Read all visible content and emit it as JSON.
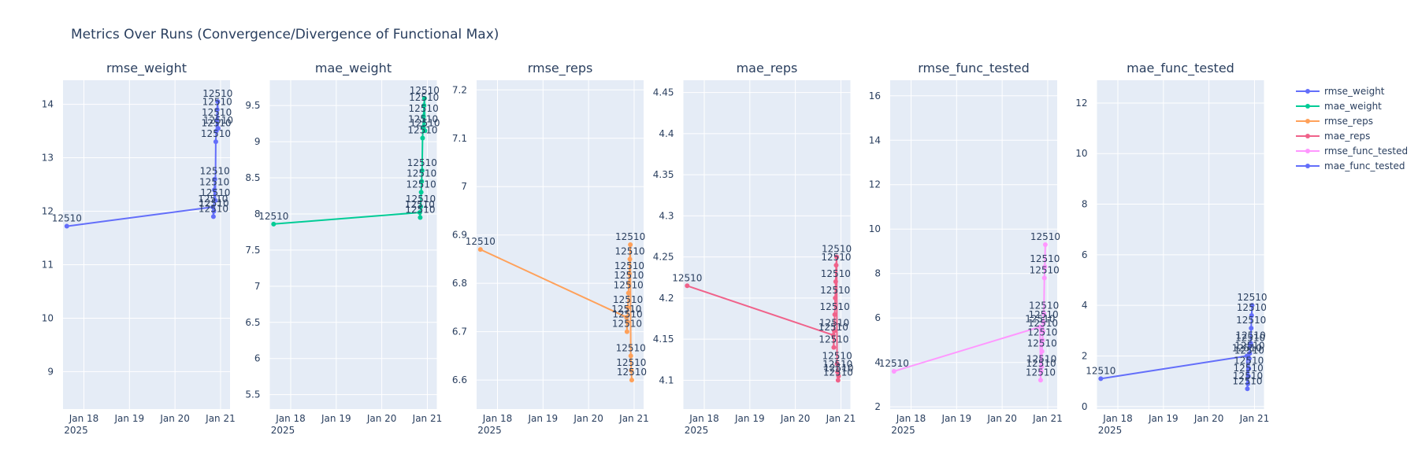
{
  "chart_data": {
    "type": "line",
    "title": "Metrics Over Runs (Convergence/Divergence of Functional Max)",
    "x_ticks": [
      "Jan 18",
      "Jan 19",
      "Jan 20",
      "Jan 21"
    ],
    "x_year_label": "2025",
    "x_range": [
      "2025-01-17 13:00",
      "2025-01-21 05:00"
    ],
    "point_label": "12510",
    "legend_position": "top-right",
    "grid": true,
    "colors": {
      "plot_bg": "#E5ECF6",
      "grid": "#ffffff",
      "text": "#2a3f5f"
    },
    "panels": [
      {
        "name": "rmse_weight",
        "color": "#636EFA",
        "ylim": [
          8.3,
          14.45
        ],
        "y_ticks": [
          9,
          10,
          11,
          12,
          13,
          14
        ],
        "x": [
          "2025-01-17 15:00",
          "2025-01-20 20:00",
          "2025-01-20 20:15",
          "2025-01-20 20:30",
          "2025-01-20 20:45",
          "2025-01-20 21:00",
          "2025-01-20 21:15",
          "2025-01-20 21:30",
          "2025-01-20 21:45",
          "2025-01-20 22:00",
          "2025-01-20 22:15",
          "2025-01-20 22:30",
          "2025-01-20 22:45"
        ],
        "values": [
          11.72,
          12.08,
          11.9,
          12.0,
          12.4,
          12.6,
          12.2,
          13.3,
          13.5,
          13.7,
          13.9,
          14.05,
          13.55
        ]
      },
      {
        "name": "mae_weight",
        "color": "#00CC96",
        "ylim": [
          5.3,
          9.85
        ],
        "y_ticks": [
          5.5,
          6,
          6.5,
          7,
          7.5,
          8,
          8.5,
          9,
          9.5
        ],
        "x": [
          "2025-01-17 15:00",
          "2025-01-20 20:00",
          "2025-01-20 20:15",
          "2025-01-20 20:30",
          "2025-01-20 20:45",
          "2025-01-20 21:00",
          "2025-01-20 21:15",
          "2025-01-20 21:30",
          "2025-01-20 21:45",
          "2025-01-20 22:00",
          "2025-01-20 22:15",
          "2025-01-20 22:30",
          "2025-01-20 22:45"
        ],
        "values": [
          7.86,
          8.02,
          7.95,
          8.1,
          8.3,
          8.45,
          8.6,
          9.05,
          9.2,
          9.35,
          9.5,
          9.6,
          9.15
        ]
      },
      {
        "name": "rmse_reps",
        "color": "#FFA15A",
        "ylim": [
          6.54,
          7.22
        ],
        "y_ticks": [
          6.6,
          6.7,
          6.8,
          6.9,
          7,
          7.1,
          7.2
        ],
        "x": [
          "2025-01-17 15:00",
          "2025-01-20 20:00",
          "2025-01-20 20:15",
          "2025-01-20 20:30",
          "2025-01-20 20:45",
          "2025-01-20 21:00",
          "2025-01-20 21:15",
          "2025-01-20 21:30",
          "2025-01-20 21:45",
          "2025-01-20 22:00",
          "2025-01-20 22:15",
          "2025-01-20 22:30",
          "2025-01-20 22:45"
        ],
        "values": [
          6.87,
          6.73,
          6.7,
          6.72,
          6.75,
          6.78,
          6.8,
          6.82,
          6.85,
          6.88,
          6.65,
          6.62,
          6.6
        ]
      },
      {
        "name": "mae_reps",
        "color": "#EF553B",
        "line_color": "#F0628A",
        "ylim": [
          4.065,
          4.465
        ],
        "y_ticks": [
          4.1,
          4.15,
          4.2,
          4.25,
          4.3,
          4.35,
          4.4,
          4.45
        ],
        "x": [
          "2025-01-17 15:00",
          "2025-01-20 20:00",
          "2025-01-20 20:15",
          "2025-01-20 20:30",
          "2025-01-20 20:45",
          "2025-01-20 21:00",
          "2025-01-20 21:15",
          "2025-01-20 21:30",
          "2025-01-20 21:45",
          "2025-01-20 22:00",
          "2025-01-20 22:15",
          "2025-01-20 22:30",
          "2025-01-20 22:45"
        ],
        "values": [
          4.215,
          4.155,
          4.14,
          4.16,
          4.18,
          4.2,
          4.22,
          4.24,
          4.25,
          4.12,
          4.11,
          4.1,
          4.105
        ]
      },
      {
        "name": "rmse_func_tested",
        "color": "#FF97FF",
        "ylim": [
          1.9,
          16.7
        ],
        "y_ticks": [
          2,
          4,
          6,
          8,
          10,
          12,
          14,
          16
        ],
        "x": [
          "2025-01-17 15:00",
          "2025-01-20 20:00",
          "2025-01-20 20:15",
          "2025-01-20 20:30",
          "2025-01-20 20:45",
          "2025-01-20 21:00",
          "2025-01-20 21:15",
          "2025-01-20 21:30",
          "2025-01-20 21:45",
          "2025-01-20 22:00",
          "2025-01-20 22:15",
          "2025-01-20 22:30",
          "2025-01-20 22:45"
        ],
        "values": [
          3.6,
          5.6,
          3.2,
          3.6,
          3.8,
          4.5,
          5.0,
          5.4,
          5.8,
          6.2,
          7.8,
          8.3,
          9.3
        ]
      },
      {
        "name": "mae_func_tested",
        "color": "#636EFA",
        "ylim": [
          -0.1,
          12.9
        ],
        "y_ticks": [
          0,
          2,
          4,
          6,
          8,
          10,
          12
        ],
        "x": [
          "2025-01-17 15:00",
          "2025-01-20 20:00",
          "2025-01-20 20:15",
          "2025-01-20 20:30",
          "2025-01-20 20:45",
          "2025-01-20 21:00",
          "2025-01-20 21:15",
          "2025-01-20 21:30",
          "2025-01-20 21:45",
          "2025-01-20 22:00",
          "2025-01-20 22:15",
          "2025-01-20 22:30",
          "2025-01-20 22:45"
        ],
        "values": [
          1.1,
          2.0,
          0.7,
          0.9,
          1.2,
          1.5,
          1.9,
          2.1,
          2.4,
          2.5,
          3.1,
          3.6,
          4.0
        ]
      }
    ]
  }
}
